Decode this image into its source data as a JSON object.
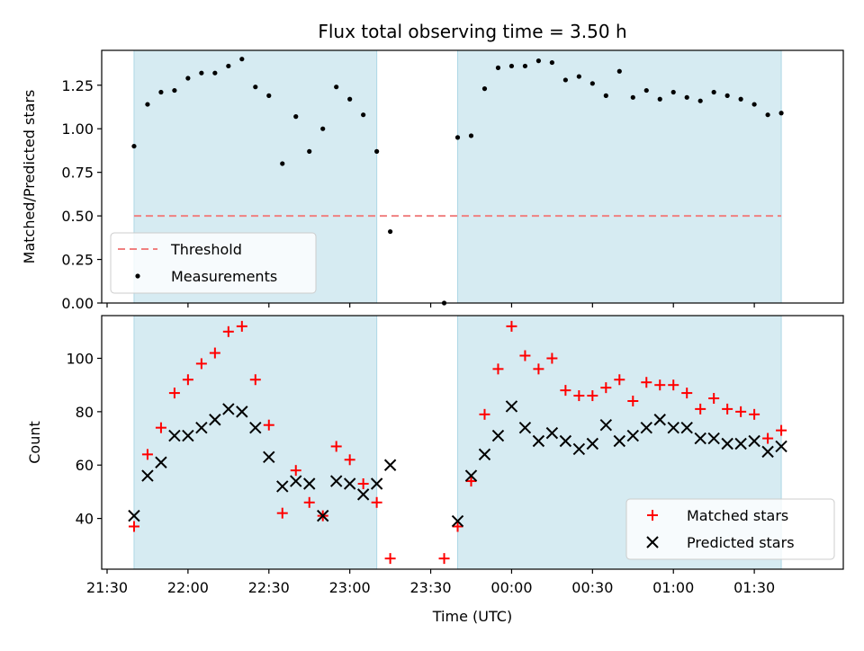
{
  "chart_data": {
    "type": "scatter",
    "title": "Flux total observing time = 3.50 h",
    "xlabel": "Time (UTC)",
    "x_unit": "minutes after 21:00 UTC",
    "x_tick_labels": [
      "21:30",
      "22:00",
      "22:30",
      "23:00",
      "23:30",
      "00:00",
      "00:30",
      "01:00",
      "01:30"
    ],
    "x_tick_values": [
      30,
      60,
      90,
      120,
      150,
      180,
      210,
      240,
      270
    ],
    "xlim": [
      28,
      303
    ],
    "shaded_intervals": [
      [
        40,
        130
      ],
      [
        160,
        280
      ]
    ],
    "panels": [
      {
        "name": "ratio",
        "ylabel": "Matched/Predicted stars",
        "ylim": [
          0,
          1.45
        ],
        "y_ticks": [
          0.0,
          0.25,
          0.5,
          0.75,
          1.0,
          1.25
        ],
        "y_tick_labels": [
          "0.00",
          "0.25",
          "0.50",
          "0.75",
          "1.00",
          "1.25"
        ],
        "threshold": 0.5,
        "legend": {
          "position": "lower-left",
          "entries": [
            "Threshold",
            "Measurements"
          ]
        },
        "measurements": {
          "x": [
            40,
            45,
            50,
            55,
            60,
            65,
            70,
            75,
            80,
            85,
            90,
            95,
            100,
            105,
            110,
            115,
            120,
            125,
            130,
            135,
            155,
            160,
            165,
            170,
            175,
            180,
            185,
            190,
            195,
            200,
            205,
            210,
            215,
            220,
            225,
            230,
            235,
            240,
            245,
            250,
            255,
            260,
            265,
            270,
            275,
            280
          ],
          "y": [
            0.9,
            1.14,
            1.21,
            1.22,
            1.29,
            1.32,
            1.32,
            1.36,
            1.4,
            1.24,
            1.19,
            0.8,
            1.07,
            0.87,
            1.0,
            1.24,
            1.17,
            1.08,
            0.87,
            0.41,
            0.0,
            0.95,
            0.96,
            1.23,
            1.35,
            1.36,
            1.36,
            1.39,
            1.38,
            1.28,
            1.3,
            1.26,
            1.19,
            1.33,
            1.18,
            1.22,
            1.17,
            1.21,
            1.18,
            1.16,
            1.21,
            1.19,
            1.17,
            1.14,
            1.08,
            1.09
          ]
        }
      },
      {
        "name": "count",
        "ylabel": "Count",
        "ylim": [
          21,
          116
        ],
        "y_ticks": [
          40,
          60,
          80,
          100
        ],
        "y_tick_labels": [
          "40",
          "60",
          "80",
          "100"
        ],
        "legend": {
          "position": "lower-right",
          "entries": [
            "Matched stars",
            "Predicted stars"
          ]
        },
        "series": [
          {
            "name": "Matched stars",
            "color": "#ff0000",
            "marker": "plus",
            "x": [
              40,
              45,
              50,
              55,
              60,
              65,
              70,
              75,
              80,
              85,
              90,
              95,
              100,
              105,
              110,
              115,
              120,
              125,
              130,
              135,
              155,
              160,
              165,
              170,
              175,
              180,
              185,
              190,
              195,
              200,
              205,
              210,
              215,
              220,
              225,
              230,
              235,
              240,
              245,
              250,
              255,
              260,
              265,
              270,
              275,
              280
            ],
            "y": [
              37,
              64,
              74,
              87,
              92,
              98,
              102,
              110,
              112,
              92,
              75,
              42,
              58,
              46,
              41,
              67,
              62,
              53,
              46,
              25,
              25,
              37,
              54,
              79,
              96,
              112,
              101,
              96,
              100,
              88,
              86,
              86,
              89,
              92,
              84,
              91,
              90,
              90,
              87,
              81,
              85,
              81,
              80,
              79,
              70,
              73
            ]
          },
          {
            "name": "Predicted stars",
            "color": "#000000",
            "marker": "x",
            "x": [
              40,
              45,
              50,
              55,
              60,
              65,
              70,
              75,
              80,
              85,
              90,
              95,
              100,
              105,
              110,
              115,
              120,
              125,
              130,
              135,
              160,
              165,
              170,
              175,
              180,
              185,
              190,
              195,
              200,
              205,
              210,
              215,
              220,
              225,
              230,
              235,
              240,
              245,
              250,
              255,
              260,
              265,
              270,
              275,
              280
            ],
            "y": [
              41,
              56,
              61,
              71,
              71,
              74,
              77,
              81,
              80,
              74,
              63,
              52,
              54,
              53,
              41,
              54,
              53,
              49,
              53,
              60,
              39,
              56,
              64,
              71,
              82,
              74,
              69,
              72,
              69,
              66,
              68,
              75,
              69,
              71,
              74,
              77,
              74,
              74,
              70,
              70,
              68,
              68,
              69,
              65,
              67
            ]
          }
        ]
      }
    ],
    "colors": {
      "shade": "#add8e6",
      "threshold": "#f08080",
      "measurement": "#000000"
    }
  }
}
